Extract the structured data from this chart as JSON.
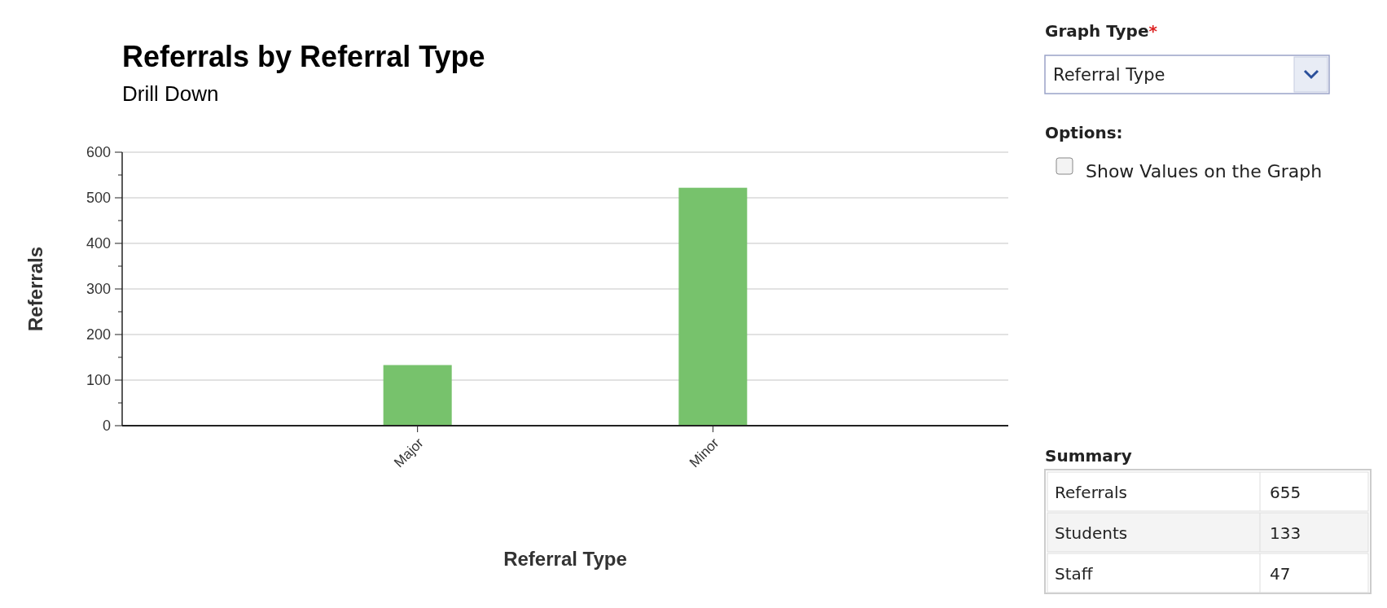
{
  "chart_data": [
    {
      "type": "bar",
      "title": "Referrals by Referral Type",
      "subtitle": "Drill Down",
      "xlabel": "Referral Type",
      "ylabel": "Referrals",
      "categories": [
        "Major",
        "Minor"
      ],
      "values": [
        133,
        522
      ],
      "color": "#77c26c",
      "ylim": [
        0,
        600
      ],
      "yticks": [
        0,
        {
          "value": 50,
          "label": null
        },
        100,
        {
          "value": 150,
          "label": null
        },
        200,
        {
          "value": 250,
          "label": null
        },
        300,
        {
          "value": 350,
          "label": null
        },
        400,
        {
          "value": 450,
          "label": null
        },
        500,
        {
          "value": 550,
          "label": null
        },
        600
      ],
      "grid": "y"
    },
    {
      "type": "other",
      "annotations": [
        "Graph Type",
        "*",
        "Referral Type",
        "Options:",
        "Show Values on the Graph",
        "Summary",
        "Referrals",
        "655",
        "Students",
        "133",
        "Staff",
        "47"
      ]
    }
  ]
}
